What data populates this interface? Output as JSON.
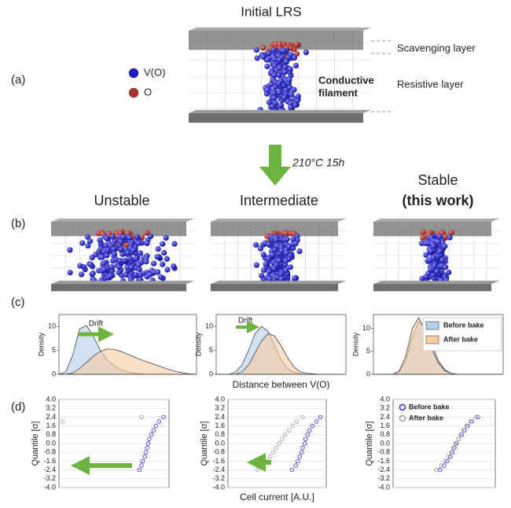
{
  "panel_labels": [
    "(a)",
    "(b)",
    "(c)",
    "(d)"
  ],
  "panel_a": {
    "title": "Initial LRS",
    "legend": [
      {
        "label": "V(O)",
        "color": "#1f1fc8"
      },
      {
        "label": "O",
        "color": "#b0302a"
      }
    ],
    "layers": [
      "Scavenging layer",
      "Resistive layer"
    ],
    "filament_label": [
      "Conductive",
      "filament"
    ]
  },
  "arrow_label": "210°C 15h",
  "columns": [
    {
      "title": [
        "Unstable"
      ]
    },
    {
      "title": [
        "Intermediate"
      ]
    },
    {
      "title": [
        "Stable",
        "(this work)"
      ]
    }
  ],
  "chart_data": [
    {
      "type": "area",
      "ylabel": "Density",
      "annotation": "Drift",
      "x": [
        0,
        0.5,
        1,
        1.5,
        2,
        2.5,
        3,
        3.5,
        4,
        4.5,
        5,
        5.5,
        6,
        6.5,
        7,
        7.5,
        8,
        8.5,
        9,
        9.5,
        10
      ],
      "xlim": [
        0,
        10
      ],
      "ylim": [
        0,
        12.5
      ],
      "yticks": [
        0,
        5,
        10
      ],
      "series": [
        {
          "color": "#b3d1ea",
          "values": [
            0,
            0.5,
            4,
            9.5,
            10.2,
            8,
            5,
            3,
            1.8,
            1,
            0.5,
            0.2,
            0.1,
            0,
            0,
            0,
            0,
            0,
            0,
            0,
            0
          ]
        },
        {
          "color": "#f7cba0",
          "values": [
            0,
            0,
            0.3,
            1.2,
            2.5,
            3.8,
            4.8,
            5.3,
            5.2,
            4.8,
            4.2,
            3.6,
            3,
            2.5,
            2,
            1.5,
            1,
            0.6,
            0.3,
            0.1,
            0
          ]
        }
      ]
    },
    {
      "type": "area",
      "ylabel": "Density",
      "annotation": "Drift",
      "xlabel": "Distance between V(O)",
      "x": [
        0,
        0.5,
        1,
        1.5,
        2,
        2.5,
        3,
        3.5,
        4,
        4.5,
        5,
        5.5,
        6,
        6.5,
        7,
        7.5,
        8,
        8.5,
        9,
        9.5,
        10
      ],
      "xlim": [
        0,
        10
      ],
      "ylim": [
        0,
        12.5
      ],
      "yticks": [
        0,
        5,
        10
      ],
      "series": [
        {
          "color": "#b3d1ea",
          "values": [
            0,
            0,
            0,
            0.5,
            2,
            5,
            8.5,
            10,
            9,
            6,
            3,
            1.2,
            0.4,
            0.1,
            0,
            0,
            0,
            0,
            0,
            0,
            0
          ]
        },
        {
          "color": "#f7cba0",
          "values": [
            0,
            0,
            0,
            0,
            0.5,
            2,
            4.5,
            7,
            8.5,
            8,
            6,
            3.5,
            1.5,
            0.5,
            0.2,
            0.1,
            0,
            0,
            0,
            0,
            0
          ]
        }
      ]
    },
    {
      "type": "area",
      "ylabel": "Density",
      "x": [
        0,
        0.5,
        1,
        1.5,
        2,
        2.5,
        3,
        3.5,
        4,
        4.5,
        5,
        5.5,
        6,
        6.5,
        7,
        7.5,
        8,
        8.5,
        9,
        9.5,
        10
      ],
      "xlim": [
        0,
        10
      ],
      "ylim": [
        0,
        13
      ],
      "yticks": [
        0,
        5,
        10
      ],
      "series": [
        {
          "name": "Before bake",
          "color": "#b3d1ea",
          "values": [
            0,
            0,
            0,
            0,
            0.5,
            3,
            8,
            11.5,
            10,
            6.5,
            3,
            1,
            0.2,
            0,
            0,
            0,
            0,
            0,
            0,
            0,
            0
          ]
        },
        {
          "name": "After bake",
          "color": "#f7cba0",
          "values": [
            0,
            0,
            0,
            0,
            0.8,
            4,
            10,
            12.3,
            9.5,
            5.5,
            2.5,
            0.8,
            0.2,
            0,
            0,
            0,
            0,
            0,
            0,
            0,
            0
          ]
        }
      ]
    },
    {
      "type": "scatter",
      "ylabel": "Quantile [σ]",
      "grid": true,
      "xlim": [
        0,
        10
      ],
      "ylim": [
        -4,
        4
      ],
      "yticks": [
        {
          "value": -4,
          "label": "-4.0"
        },
        {
          "value": -3.2,
          "label": "-3.2"
        },
        {
          "value": -2.4,
          "label": "-2.4"
        },
        {
          "value": -1.6,
          "label": "-1.6"
        },
        {
          "value": -0.8,
          "label": "-0.8"
        },
        {
          "value": 0,
          "label": "0.0"
        },
        {
          "value": 0.8,
          "label": "0.8"
        },
        {
          "value": 1.6,
          "label": "1.6"
        },
        {
          "value": 2.4,
          "label": "2.4"
        },
        {
          "value": 3.2,
          "label": "3.2"
        },
        {
          "value": 4,
          "label": "4.0"
        }
      ],
      "series": [
        {
          "color": "#2b2bd0",
          "x": [
            7.3,
            7.5,
            7.6,
            7.8,
            7.9,
            8.0,
            8.1,
            8.2,
            8.4,
            8.6,
            8.8,
            9.1,
            9.5
          ],
          "values": [
            -2.4,
            -2.0,
            -1.6,
            -1.2,
            -0.8,
            -0.4,
            0,
            0.4,
            0.8,
            1.2,
            1.6,
            2.0,
            2.4
          ]
        },
        {
          "color": "#999999",
          "x": [
            0.3,
            7.5
          ],
          "values": [
            2.0,
            2.4
          ]
        }
      ]
    },
    {
      "type": "scatter",
      "ylabel": "Quantile [σ]",
      "xlabel": "Cell current [A.U.]",
      "grid": true,
      "xlim": [
        0,
        10
      ],
      "ylim": [
        -4,
        4
      ],
      "yticks": [
        {
          "value": -4,
          "label": "-4.0"
        },
        {
          "value": -3.2,
          "label": "-3.2"
        },
        {
          "value": -2.4,
          "label": "-2.4"
        },
        {
          "value": -1.6,
          "label": "-1.6"
        },
        {
          "value": -0.8,
          "label": "-0.8"
        },
        {
          "value": 0,
          "label": "0.0"
        },
        {
          "value": 0.8,
          "label": "0.8"
        },
        {
          "value": 1.6,
          "label": "1.6"
        },
        {
          "value": 2.4,
          "label": "2.4"
        },
        {
          "value": 3.2,
          "label": "3.2"
        },
        {
          "value": 4,
          "label": "4.0"
        }
      ],
      "series": [
        {
          "color": "#2b2bd0",
          "x": [
            6.5,
            6.9,
            7.1,
            7.3,
            7.5,
            7.6,
            7.8,
            7.9,
            8.1,
            8.3,
            8.6,
            9.0,
            9.4
          ],
          "values": [
            -2.4,
            -2.0,
            -1.6,
            -1.2,
            -0.8,
            -0.4,
            0,
            0.4,
            0.8,
            1.2,
            1.6,
            2.0,
            2.4
          ]
        },
        {
          "color": "#999999",
          "x": [
            3.0,
            3.6,
            4.0,
            4.3,
            4.6,
            4.9,
            5.2,
            5.5,
            5.8,
            6.2,
            6.6,
            7.0,
            7.6
          ],
          "values": [
            -2.4,
            -2.0,
            -1.6,
            -1.2,
            -0.8,
            -0.4,
            0,
            0.4,
            0.8,
            1.2,
            1.6,
            2.0,
            2.4
          ]
        }
      ]
    },
    {
      "type": "scatter",
      "ylabel": "Quantile [σ]",
      "grid": true,
      "xlim": [
        0,
        10
      ],
      "ylim": [
        -4,
        4
      ],
      "yticks": [
        {
          "value": -4,
          "label": "-4.0"
        },
        {
          "value": -3.2,
          "label": "-3.2"
        },
        {
          "value": -2.4,
          "label": "-2.4"
        },
        {
          "value": -1.6,
          "label": "-1.6"
        },
        {
          "value": -0.8,
          "label": "-0.8"
        },
        {
          "value": 0,
          "label": "0.0"
        },
        {
          "value": 0.8,
          "label": "0.8"
        },
        {
          "value": 1.6,
          "label": "1.6"
        },
        {
          "value": 2.4,
          "label": "2.4"
        },
        {
          "value": 3.2,
          "label": "3.2"
        },
        {
          "value": 4,
          "label": "4.0"
        }
      ],
      "series": [
        {
          "name": "Before bake",
          "color": "#2b2bd0",
          "x": [
            4.6,
            5.0,
            5.3,
            5.6,
            5.8,
            6.0,
            6.2,
            6.4,
            6.7,
            7.0,
            7.3,
            7.7,
            8.3
          ],
          "values": [
            -2.4,
            -2.0,
            -1.6,
            -1.2,
            -0.8,
            -0.4,
            0,
            0.4,
            0.8,
            1.2,
            1.6,
            2.0,
            2.4
          ]
        },
        {
          "name": "After bake",
          "color": "#999999",
          "x": [
            4.2,
            4.7,
            5.1,
            5.4,
            5.7,
            5.9,
            6.1,
            6.4,
            6.6,
            6.9,
            7.2,
            7.6,
            8.1
          ],
          "values": [
            -2.4,
            -2.0,
            -1.6,
            -1.2,
            -0.8,
            -0.4,
            0,
            0.4,
            0.8,
            1.2,
            1.6,
            2.0,
            2.4
          ]
        }
      ]
    }
  ]
}
